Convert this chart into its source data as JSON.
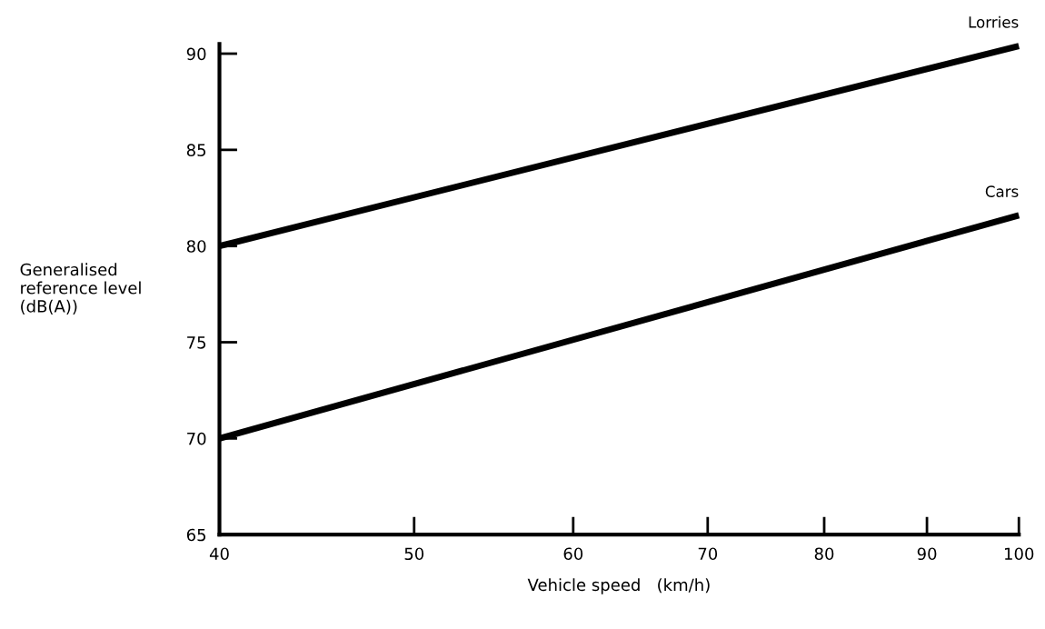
{
  "chart_data": {
    "type": "line",
    "xlabel": "Vehicle speed   (km/h)",
    "ylabel": "Generalised\nreference level\n(dB(A))",
    "log": "x",
    "xlim": [
      40,
      100
    ],
    "ylim": [
      65,
      90.5
    ],
    "xticks": [
      40,
      50,
      60,
      70,
      80,
      90,
      100
    ],
    "yticks": [
      65,
      70,
      75,
      80,
      85,
      90
    ],
    "grid": false,
    "marker": "none",
    "line_style": "solid",
    "x": [
      40,
      100
    ],
    "series": [
      {
        "name": "Lorries",
        "color": "#000000",
        "values": [
          80,
          90.4
        ]
      },
      {
        "name": "Cars",
        "color": "#000000",
        "values": [
          70,
          81.6
        ]
      }
    ]
  }
}
